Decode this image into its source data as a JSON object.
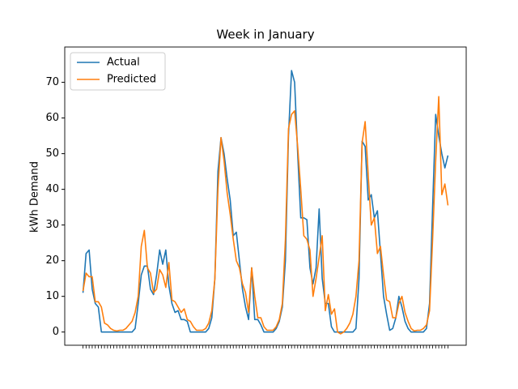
{
  "chart_data": {
    "type": "line",
    "title": "Week in January",
    "ylabel": "kWh Demand",
    "categories": [
      null,
      null,
      null,
      null,
      null,
      null,
      null,
      null,
      null,
      null,
      null,
      null,
      null,
      null,
      null,
      null,
      null,
      null,
      null,
      null,
      null,
      null,
      null,
      null,
      null,
      null,
      null,
      null,
      null,
      null,
      null,
      null,
      null,
      null,
      null,
      null,
      null,
      null,
      null,
      null,
      null,
      null,
      null,
      null,
      null,
      null,
      null,
      null,
      null,
      null,
      null,
      null,
      null,
      null,
      null,
      null,
      null,
      null,
      null,
      null,
      null,
      null,
      null,
      null,
      null,
      null,
      null,
      null,
      null,
      null,
      null,
      null,
      null,
      null,
      null,
      null,
      null,
      null,
      null,
      null,
      null,
      null,
      null,
      null,
      null,
      null,
      null,
      null,
      null,
      null,
      null,
      null,
      null,
      null,
      null,
      null,
      null,
      null,
      null,
      null,
      null,
      null,
      null,
      null,
      null,
      null,
      null,
      null,
      null,
      null,
      null,
      null,
      null,
      null,
      null,
      null,
      null,
      null,
      null,
      null
    ],
    "series": [
      {
        "name": "Actual",
        "color": "#1f77b4",
        "values": [
          11,
          22,
          23,
          12,
          8,
          7,
          0,
          0,
          0,
          0,
          0,
          0,
          0,
          0,
          0,
          0,
          0,
          1,
          8,
          16,
          18.5,
          18.5,
          12,
          10.5,
          16,
          23,
          19,
          23,
          13,
          8,
          5.5,
          6,
          3.5,
          3.5,
          3,
          0,
          0,
          0,
          0,
          0,
          0,
          1,
          4,
          15,
          45,
          54.5,
          50,
          43,
          37,
          27,
          28,
          20,
          12,
          7,
          3.5,
          18,
          3.5,
          3.5,
          2,
          0,
          0,
          0,
          0,
          1,
          3,
          7,
          20,
          55,
          73.3,
          70,
          50,
          32,
          32,
          31.5,
          18,
          13.5,
          18,
          34.5,
          15,
          8,
          8,
          1.5,
          0,
          0,
          0,
          0,
          0,
          0,
          0,
          1,
          15,
          53.5,
          52,
          37,
          38.5,
          32,
          34,
          22,
          10,
          5,
          0.5,
          1,
          4,
          10,
          7,
          3,
          1,
          0,
          0,
          0,
          0,
          0,
          1,
          8,
          35,
          61,
          55,
          50,
          46,
          49.5
        ]
      },
      {
        "name": "Predicted",
        "color": "#ff7f0e",
        "values": [
          11.5,
          16.5,
          15.5,
          15.5,
          8.5,
          8.5,
          7,
          2.5,
          2,
          1,
          0.5,
          0.3,
          0.5,
          0.5,
          1,
          2,
          3,
          5.5,
          10,
          24,
          28.5,
          18,
          16.5,
          11,
          12,
          17.5,
          16,
          12.5,
          19.5,
          9,
          8.5,
          7,
          5.5,
          6.5,
          3.5,
          3,
          1.5,
          0.5,
          0.5,
          0.5,
          1,
          2.5,
          6,
          15,
          40,
          54.5,
          48,
          39,
          33,
          26,
          20,
          18,
          13.5,
          11,
          5.5,
          18,
          10,
          4,
          4,
          1.5,
          0.5,
          0.5,
          0.5,
          1.5,
          3.5,
          8,
          26,
          57,
          61,
          62,
          52,
          40,
          27,
          26,
          23,
          10,
          15,
          21,
          27,
          6,
          10.5,
          5,
          6.5,
          0,
          -0.5,
          0,
          1,
          2.5,
          5,
          10,
          20,
          53,
          59,
          44,
          30,
          32,
          22,
          24,
          16,
          9,
          8.5,
          4,
          4,
          8,
          10,
          5.5,
          3,
          1,
          0.3,
          0.5,
          0.5,
          1,
          2,
          6,
          26,
          48,
          66,
          38.5,
          41.5,
          35.5
        ]
      }
    ],
    "ylim": [
      -3.7,
      79.9
    ],
    "yticks": [
      0,
      10,
      20,
      30,
      40,
      50,
      60,
      70
    ],
    "legend": "upper left"
  }
}
